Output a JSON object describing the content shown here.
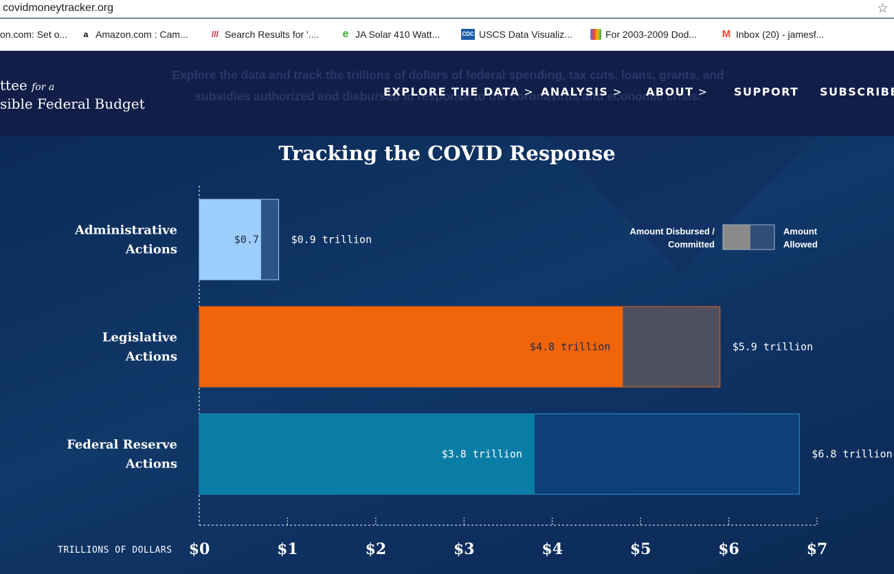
{
  "browser": {
    "url": "covidmoneytracker.org",
    "bookmarks": [
      {
        "label": "on.com: Set o...",
        "icon": "bookmark-icon"
      },
      {
        "label": "Amazon.com : Cam...",
        "icon": "amazon-icon"
      },
      {
        "label": "Search Results for '....",
        "icon": "search-results-icon"
      },
      {
        "label": "JA Solar 410 Watt...",
        "icon": "e-icon"
      },
      {
        "label": "USCS Data Visualiz...",
        "icon": "cdc-icon"
      },
      {
        "label": "For 2003-2009 Dod...",
        "icon": "shopping-bag-icon"
      },
      {
        "label": "Inbox (20) - jamesf...",
        "icon": "gmail-icon"
      }
    ]
  },
  "header": {
    "logo_line1": "ttee",
    "logo_fora": "for a",
    "logo_line2": "sible Federal Budget",
    "ghost_text": "Explore the data and track the trillions of dollars of federal spending, tax cuts, loans, grants, and subsidies authorized and disbursed in response to the coronavirus and economic crisis.",
    "nav": {
      "explore": "EXPLORE THE DATA",
      "analysis": "ANALYSIS",
      "about": "ABOUT",
      "support": "SUPPORT",
      "subscribe": "SUBSCRIBE"
    }
  },
  "chart_data": {
    "type": "bar",
    "title": "Tracking the COVID Response",
    "orientation": "horizontal",
    "xlabel": "TRILLIONS OF DOLLARS",
    "xlim": [
      0,
      7
    ],
    "ticks": [
      "$0",
      "$1",
      "$2",
      "$3",
      "$4",
      "$5",
      "$6",
      "$7"
    ],
    "categories": [
      {
        "line1": "Administrative",
        "line2": "Actions"
      },
      {
        "line1": "Legislative",
        "line2": "Actions"
      },
      {
        "line1": "Federal Reserve",
        "line2": "Actions"
      }
    ],
    "series": [
      {
        "name": "Amount Disbursed / Committed",
        "values": [
          0.7,
          4.8,
          3.8
        ],
        "labels": [
          "$0.7",
          "$4.8 trillion",
          "$3.8 trillion"
        ]
      },
      {
        "name": "Amount Allowed",
        "values": [
          0.9,
          5.9,
          6.8
        ],
        "labels": [
          "$0.9 trillion",
          "$5.9 trillion",
          "$6.8 trillion"
        ]
      }
    ],
    "colors": {
      "disbursed": [
        "#9dcdfd",
        "#f0640a",
        "#0a7da6"
      ],
      "allowed": [
        "#2e5485",
        "#4f505e",
        "#0d4077"
      ],
      "allowed_border": [
        "#9dcdfd",
        "#f0640a",
        "#2a93cf"
      ]
    },
    "legend": {
      "disbursed_line1": "Amount Disbursed /",
      "disbursed_line2": "Committed",
      "allowed_line1": "Amount",
      "allowed_line2": "Allowed",
      "position": "top-right"
    }
  }
}
